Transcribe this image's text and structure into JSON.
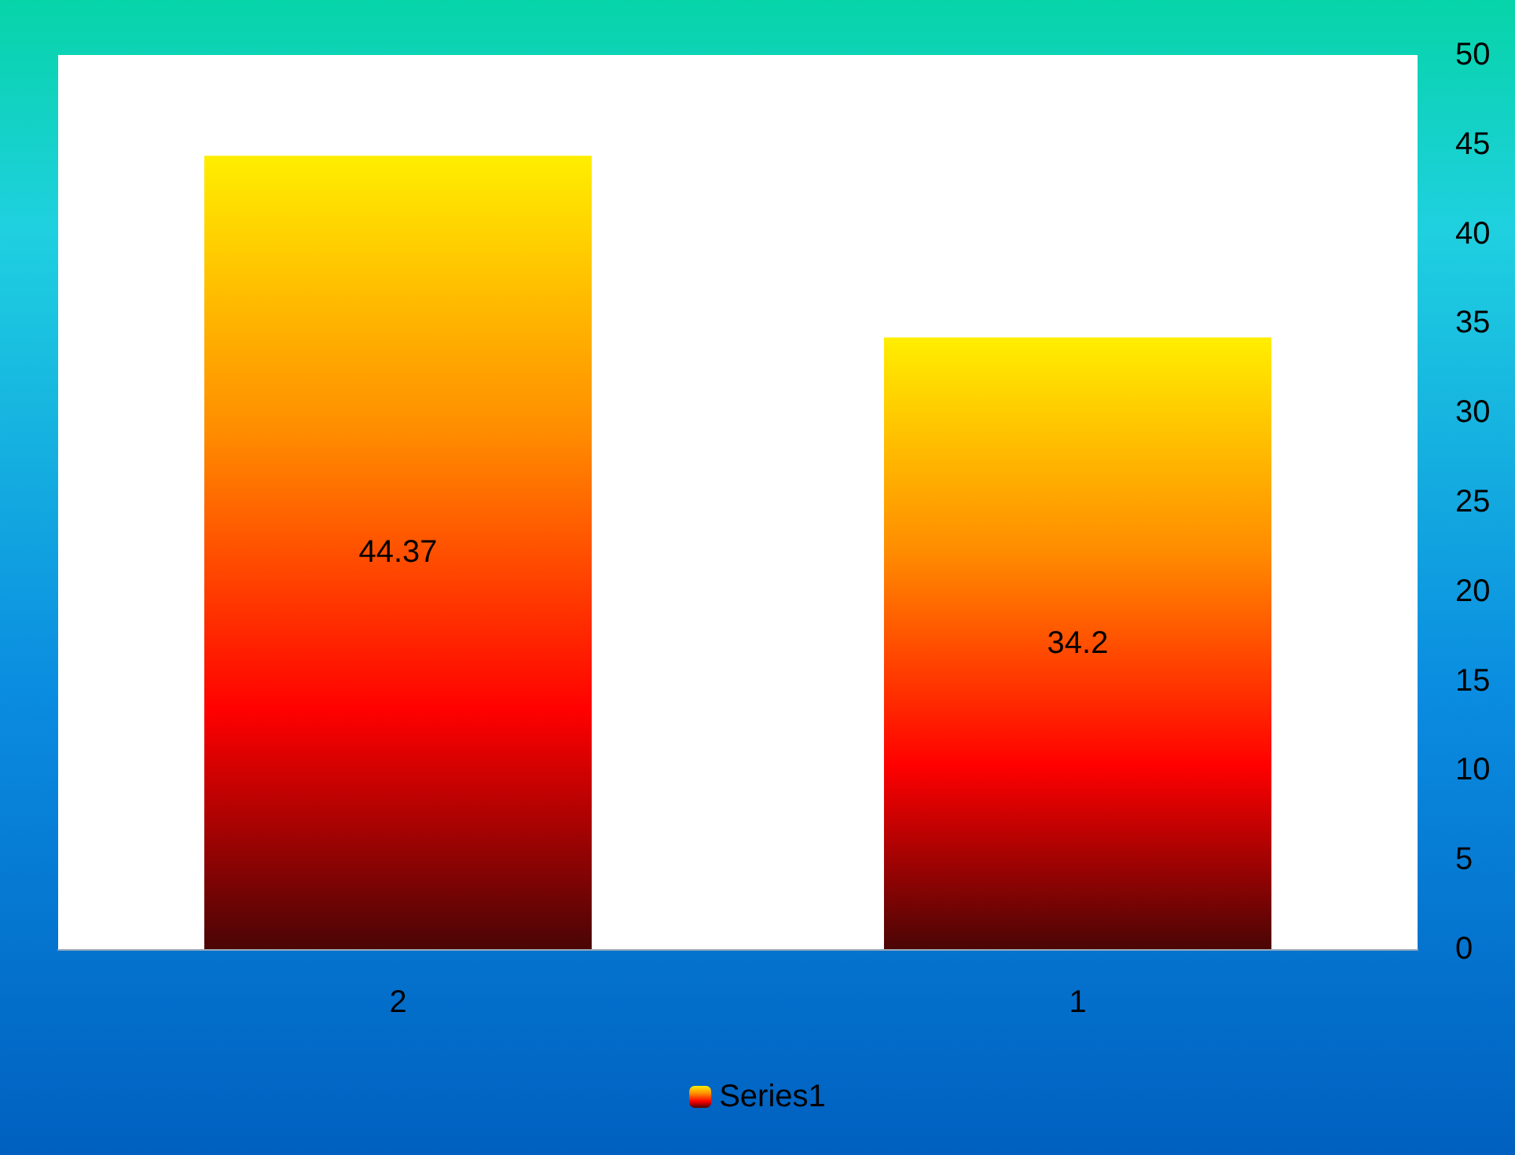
{
  "chart_data": {
    "type": "bar",
    "categories": [
      "2",
      "1"
    ],
    "series": [
      {
        "name": "Series1",
        "color": "#ff0000",
        "values": [
          44.37,
          34.2
        ]
      }
    ],
    "ylim": [
      0,
      50
    ],
    "yticks": [
      0,
      5,
      10,
      15,
      20,
      25,
      30,
      35,
      40,
      45,
      50
    ],
    "data_labels": true,
    "grid": false,
    "legend": "bottom"
  }
}
